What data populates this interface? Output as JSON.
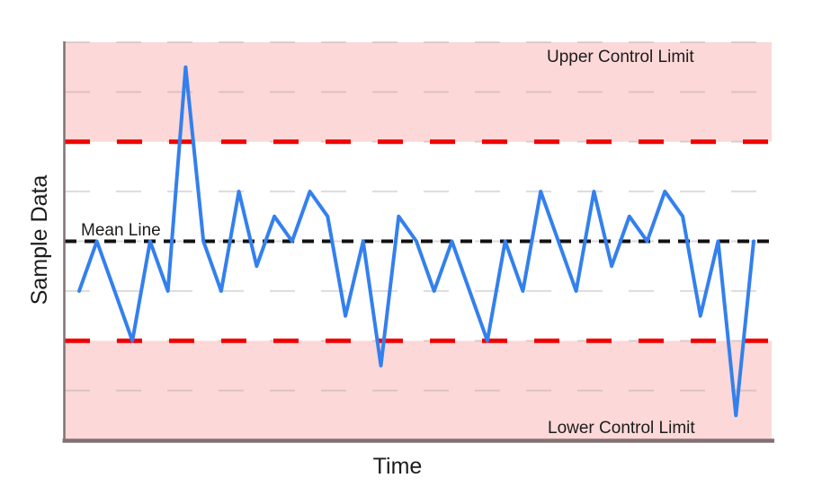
{
  "chart_data": {
    "type": "line",
    "title": "",
    "xlabel": "Time",
    "ylabel": "Sample Data",
    "x_tick_labels_visible": false,
    "y_tick_labels_visible": false,
    "grid": true,
    "grid_step": 1,
    "ylim": [
      -4,
      4
    ],
    "mean": 0,
    "upper_control_limit": 2,
    "lower_control_limit": -2,
    "series": [
      {
        "name": "Sample Data",
        "values": [
          -1,
          0,
          -1,
          -2,
          0,
          -1,
          3.5,
          0,
          -1,
          1,
          -0.5,
          0.5,
          0,
          1,
          0.5,
          -1.5,
          0,
          -2.5,
          0.5,
          0,
          -1,
          0,
          -1,
          -2,
          0,
          -1,
          1,
          0,
          -1,
          1,
          -0.5,
          0.5,
          0,
          1,
          0.5,
          -1.5,
          0,
          -3.5,
          0
        ]
      }
    ],
    "annotations": {
      "mean_label": "Mean Line",
      "ucl_label": "Upper Control Limit",
      "lcl_label": "Lower Control Limit"
    },
    "colors": {
      "line": "#3380ee",
      "limit_line": "#f20000",
      "limit_band": "#fdd8d8",
      "mean_line": "#111111",
      "gridline": "#9b9b9b",
      "axis": "#827173",
      "text": "#1c1c1c"
    }
  }
}
